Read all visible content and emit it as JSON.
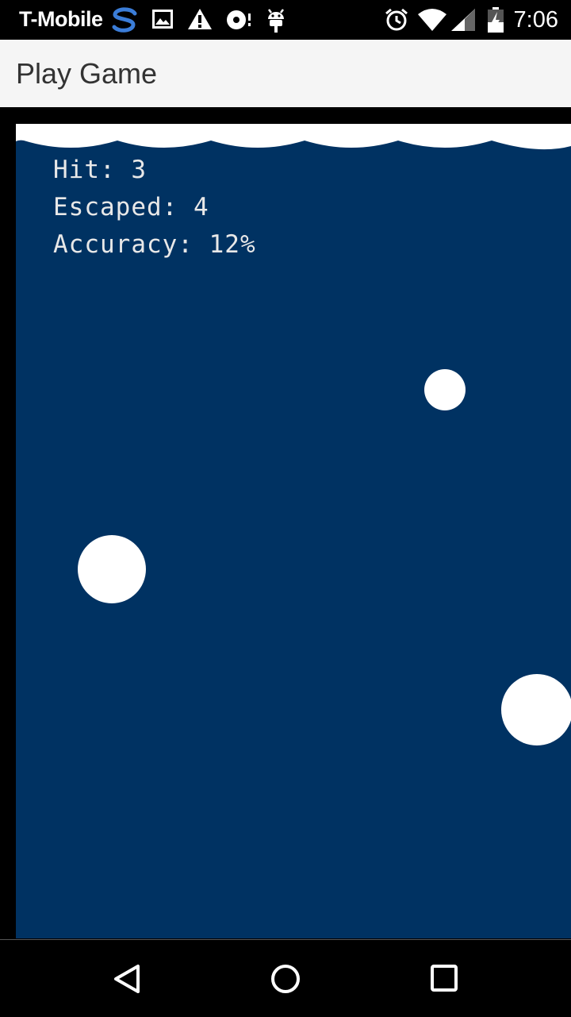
{
  "status_bar": {
    "carrier": "T-Mobile",
    "time": "7:06",
    "icons": [
      "sprint-s-icon",
      "image-icon",
      "warning-icon",
      "media-icon",
      "android-icon",
      "alarm-icon",
      "wifi-icon",
      "signal-icon",
      "battery-icon"
    ]
  },
  "app_bar": {
    "title": "Play Game"
  },
  "game": {
    "background_color": "#003262",
    "hud": {
      "hit_label": "Hit: 3",
      "escaped_label": "Escaped: 4",
      "accuracy_label": "Accuracy: 12%"
    },
    "targets": [
      "target",
      "target",
      "target"
    ]
  },
  "nav_bar": {
    "buttons": [
      "back-icon",
      "home-icon",
      "recents-icon"
    ]
  }
}
